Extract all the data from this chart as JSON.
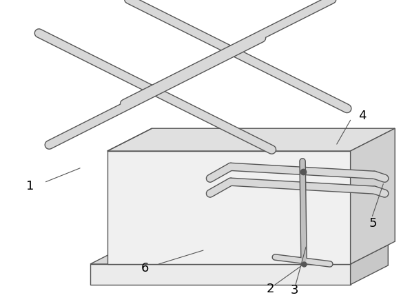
{
  "background_color": "#ffffff",
  "line_color": "#555555",
  "label_color": "#000000",
  "figure_width": 5.82,
  "figure_height": 4.39,
  "dpi": 100,
  "label_fontsize": 13,
  "fill_top": "#e0e0e0",
  "fill_front": "#f0f0f0",
  "fill_right": "#d0d0d0",
  "fill_top2": "#d8d8d8",
  "fill_front2": "#ebebeb",
  "fill_right2": "#c8c8c8",
  "tube_fill": "#d8d8d8",
  "tube_edge": "#555555"
}
